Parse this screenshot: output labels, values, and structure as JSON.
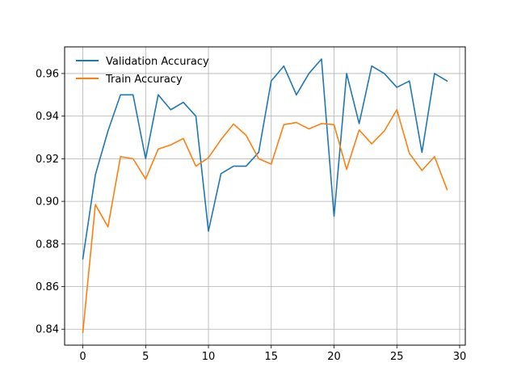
{
  "chart_data": {
    "type": "line",
    "title": "",
    "xlabel": "",
    "ylabel": "",
    "xlim": [
      -1.45,
      30.45
    ],
    "ylim": [
      0.8325,
      0.9725
    ],
    "xticks": [
      0,
      5,
      10,
      15,
      20,
      25,
      30
    ],
    "yticks": [
      0.84,
      0.86,
      0.88,
      0.9,
      0.92,
      0.94,
      0.96
    ],
    "x_tick_labels": [
      "0",
      "5",
      "10",
      "15",
      "20",
      "25",
      "30"
    ],
    "y_tick_labels": [
      "0.84",
      "0.86",
      "0.88",
      "0.90",
      "0.92",
      "0.94",
      "0.96"
    ],
    "grid": true,
    "legend_position": "upper left",
    "x": [
      0,
      1,
      2,
      3,
      4,
      5,
      6,
      7,
      8,
      9,
      10,
      11,
      12,
      13,
      14,
      15,
      16,
      17,
      18,
      19,
      20,
      21,
      22,
      23,
      24,
      25,
      26,
      27,
      28,
      29
    ],
    "series": [
      {
        "name": "Validation Accuracy",
        "color": "#1f77b4",
        "values": [
          0.873,
          0.9125,
          0.933,
          0.95,
          0.95,
          0.92,
          0.95,
          0.943,
          0.9465,
          0.94,
          0.886,
          0.913,
          0.9165,
          0.9165,
          0.923,
          0.9565,
          0.9635,
          0.95,
          0.96,
          0.9668,
          0.893,
          0.96,
          0.9365,
          0.9635,
          0.96,
          0.9535,
          0.9565,
          0.923,
          0.96,
          0.9565
        ]
      },
      {
        "name": "Train Accuracy",
        "color": "#ff7f0e",
        "values": [
          0.8385,
          0.8985,
          0.888,
          0.921,
          0.92,
          0.9105,
          0.9245,
          0.9265,
          0.9295,
          0.9165,
          0.9205,
          0.929,
          0.9363,
          0.931,
          0.92,
          0.9175,
          0.936,
          0.937,
          0.934,
          0.9365,
          0.936,
          0.915,
          0.9335,
          0.927,
          0.933,
          0.943,
          0.9225,
          0.9145,
          0.921,
          0.9055
        ]
      }
    ]
  }
}
